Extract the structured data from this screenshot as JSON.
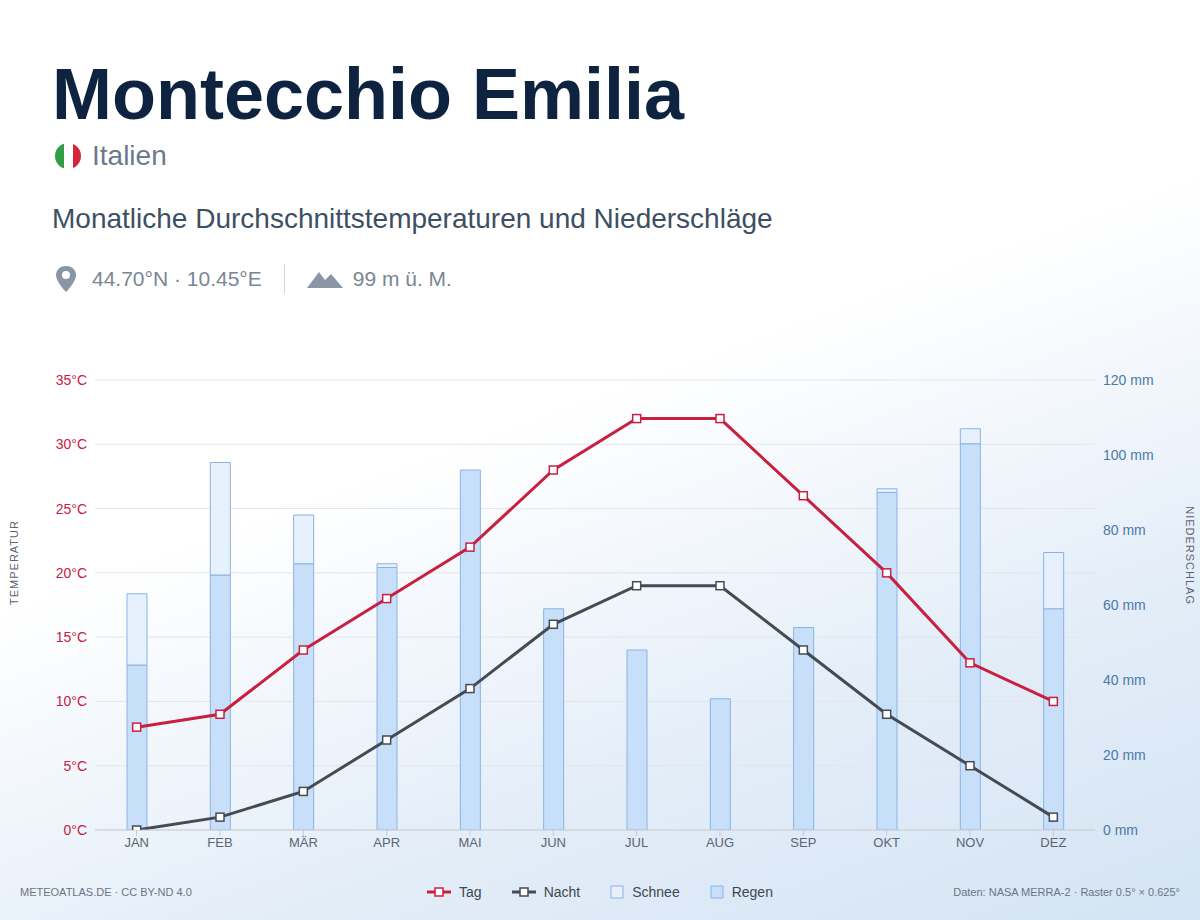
{
  "chart_data": {
    "type": "bar",
    "title": "Montecchio Emilia",
    "country": "Italien",
    "subtitle": "Monatliche Durchschnittstemperaturen und Niederschläge",
    "coordinates": "44.70°N · 10.45°E",
    "elevation": "99 m ü. M.",
    "credit": "METEOATLAS.DE · CC BY-ND 4.0",
    "source": "Daten: NASA MERRA-2 · Raster 0.5° × 0.625°",
    "y_label": "TEMPERATUR",
    "y2_label": "NIEDERSCHLAG",
    "categories": [
      "JAN",
      "FEB",
      "MÄR",
      "APR",
      "MAI",
      "JUN",
      "JUL",
      "AUG",
      "SEP",
      "OKT",
      "NOV",
      "DEZ"
    ],
    "series": [
      {
        "name": "Tag",
        "type": "line",
        "axis": "y",
        "color": "#c8213f",
        "marker": "square",
        "values": [
          8,
          9,
          14,
          18,
          22,
          28,
          32,
          32,
          26,
          20,
          13,
          10
        ]
      },
      {
        "name": "Nacht",
        "type": "line",
        "axis": "y",
        "color": "#444b55",
        "marker": "square",
        "values": [
          0,
          1,
          3,
          7,
          11,
          16,
          19,
          19,
          14,
          9,
          5,
          1
        ]
      },
      {
        "name": "Schnee",
        "type": "bar",
        "axis": "y2",
        "color": "#e6f1fd",
        "values": [
          19,
          30,
          13,
          1,
          0,
          0,
          0,
          0,
          0,
          1,
          4,
          15
        ]
      },
      {
        "name": "Regen",
        "type": "bar",
        "axis": "y2",
        "color": "#c8dff9",
        "values": [
          44,
          68,
          71,
          70,
          96,
          59,
          48,
          35,
          54,
          90,
          103,
          59
        ]
      }
    ],
    "stacked": true,
    "ylim": [
      0,
      35
    ],
    "yticks": [
      {
        "value": 0,
        "label": "0°C"
      },
      {
        "value": 5,
        "label": "5°C"
      },
      {
        "value": 10,
        "label": "10°C"
      },
      {
        "value": 15,
        "label": "15°C"
      },
      {
        "value": 20,
        "label": "20°C"
      },
      {
        "value": 25,
        "label": "25°C"
      },
      {
        "value": 30,
        "label": "30°C"
      },
      {
        "value": 35,
        "label": "35°C"
      }
    ],
    "y2lim": [
      0,
      120
    ],
    "y2ticks": [
      {
        "value": 0,
        "label": "0 mm"
      },
      {
        "value": 20,
        "label": "20 mm"
      },
      {
        "value": 40,
        "label": "40 mm"
      },
      {
        "value": 60,
        "label": "60 mm"
      },
      {
        "value": 80,
        "label": "80 mm"
      },
      {
        "value": 100,
        "label": "100 mm"
      },
      {
        "value": 120,
        "label": "120 mm"
      }
    ],
    "grid": true,
    "legend": "bottom"
  }
}
